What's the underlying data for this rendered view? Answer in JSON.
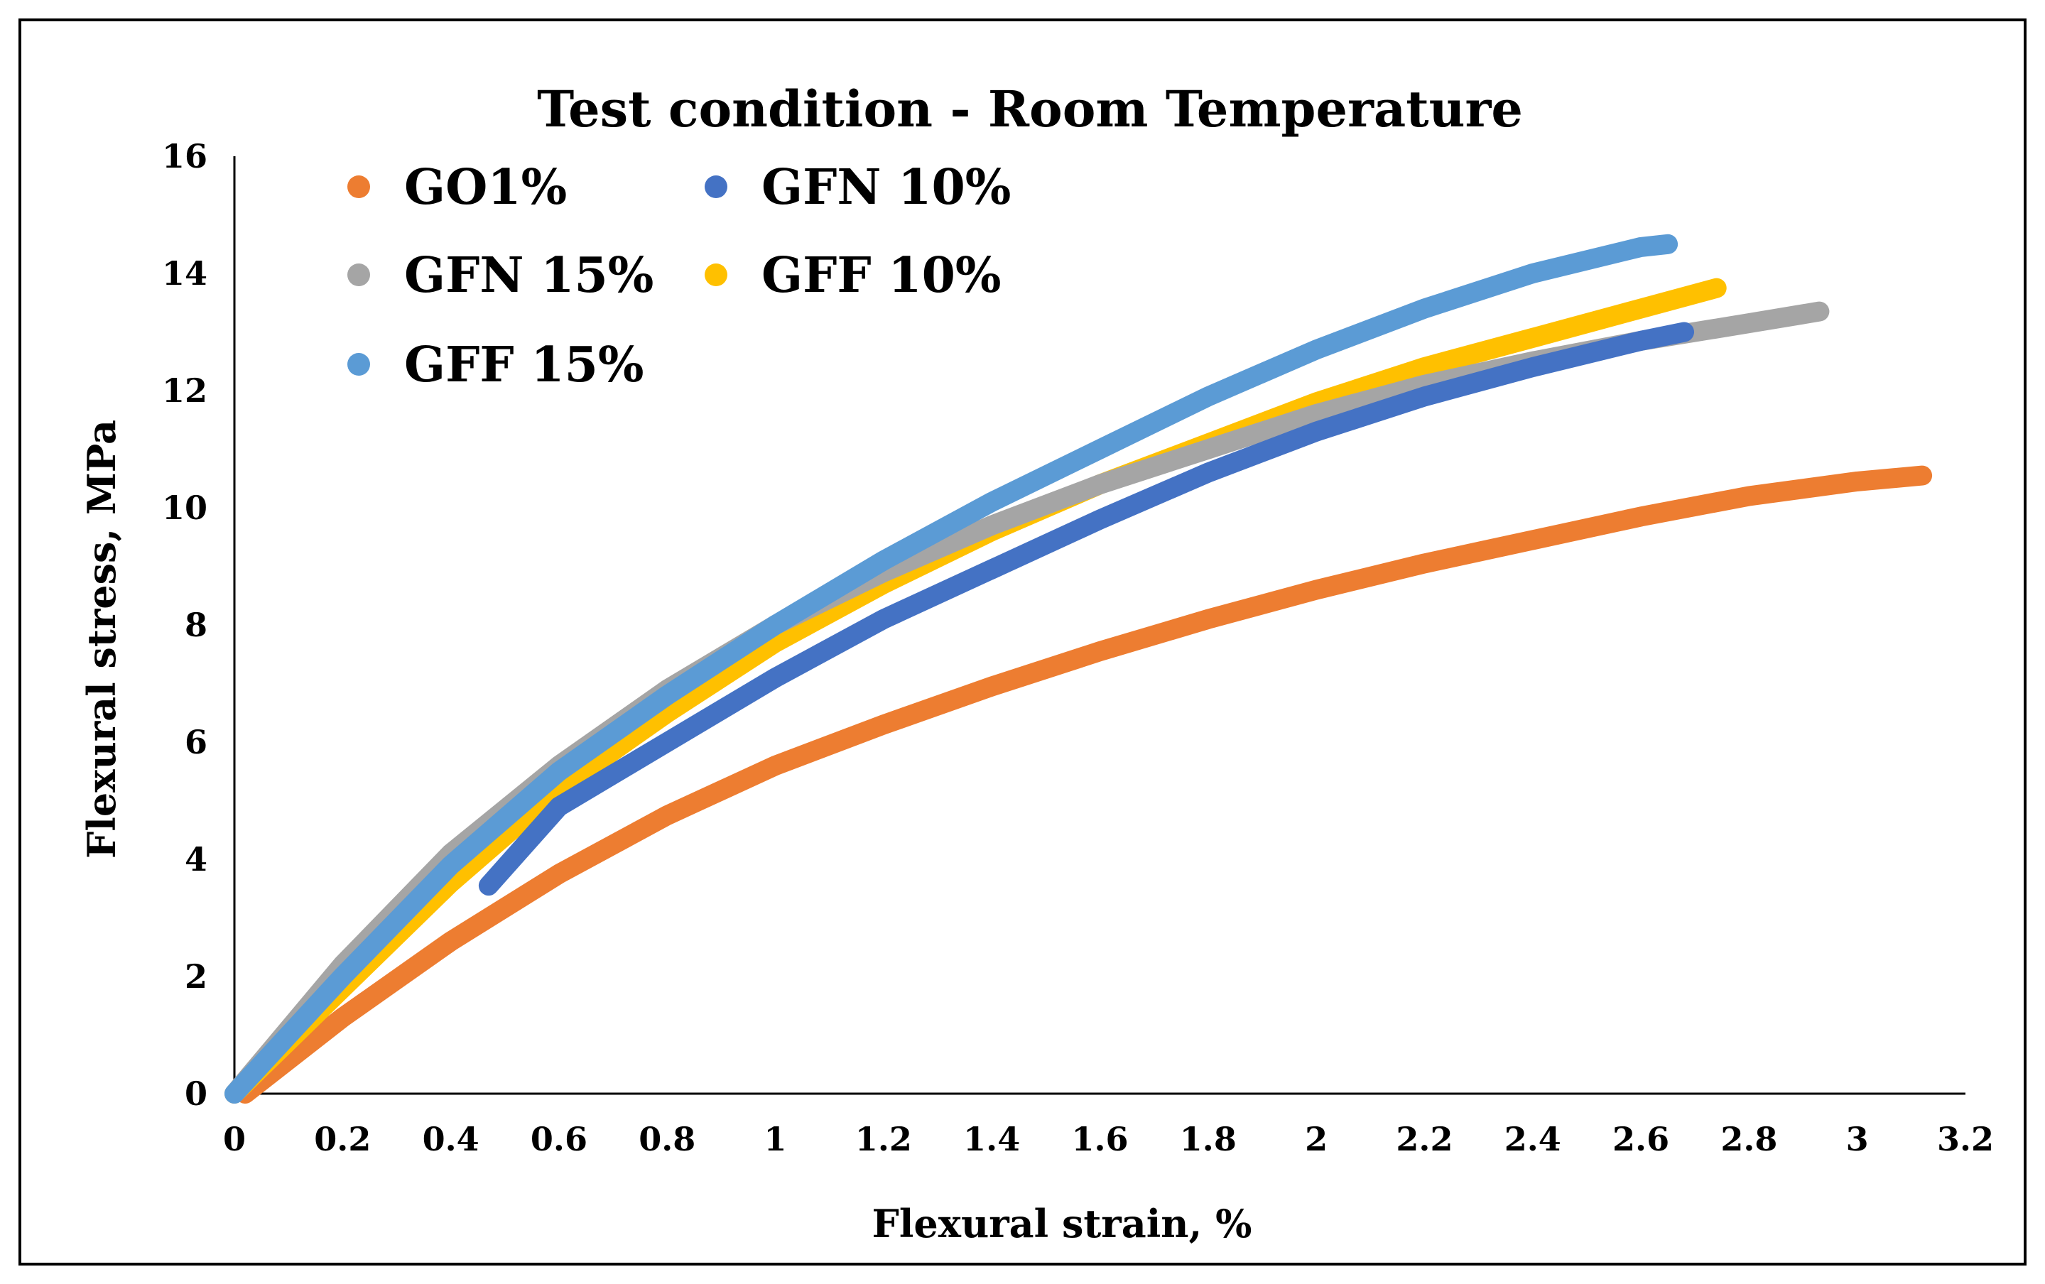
{
  "chart_data": {
    "type": "line",
    "title": "Test condition - Room Temperature",
    "xlabel": "Flexural strain, %",
    "ylabel": "Flexural stress, MPa",
    "xlim": [
      0,
      3.2
    ],
    "ylim": [
      0,
      16
    ],
    "xticks": [
      0,
      0.2,
      0.4,
      0.6,
      0.8,
      1,
      1.2,
      1.4,
      1.6,
      1.8,
      2,
      2.2,
      2.4,
      2.6,
      2.8,
      3,
      3.2
    ],
    "xtick_labels": [
      "0",
      "0.2",
      "0.4",
      "0.6",
      "0.8",
      "1",
      "1.2",
      "1.4",
      "1.6",
      "1.8",
      "2",
      "2.2",
      "2.4",
      "2.6",
      "2.8",
      "3",
      "3.2"
    ],
    "yticks": [
      0,
      2,
      4,
      6,
      8,
      10,
      12,
      14,
      16
    ],
    "ytick_labels": [
      "0",
      "2",
      "4",
      "6",
      "8",
      "10",
      "12",
      "14",
      "16"
    ],
    "grid": false,
    "legend_position": "top-left",
    "series": [
      {
        "name": "GO1%",
        "color": "#ED7D31",
        "x": [
          0.02,
          0.2,
          0.4,
          0.6,
          0.8,
          1.0,
          1.2,
          1.4,
          1.6,
          1.8,
          2.0,
          2.2,
          2.4,
          2.6,
          2.8,
          3.0,
          3.12
        ],
        "y": [
          0,
          1.3,
          2.6,
          3.75,
          4.75,
          5.6,
          6.3,
          6.95,
          7.55,
          8.1,
          8.6,
          9.05,
          9.45,
          9.85,
          10.2,
          10.45,
          10.55
        ]
      },
      {
        "name": "GFF 10%",
        "color": "#FFC000",
        "x": [
          0,
          0.1,
          0.2,
          0.4,
          0.6,
          0.8,
          1.0,
          1.2,
          1.4,
          1.6,
          1.8,
          2.0,
          2.2,
          2.4,
          2.6,
          2.74
        ],
        "y": [
          0,
          0.9,
          1.8,
          3.6,
          5.2,
          6.5,
          7.7,
          8.7,
          9.6,
          10.4,
          11.1,
          11.8,
          12.4,
          12.9,
          13.4,
          13.75
        ]
      },
      {
        "name": "GFN 15%",
        "color": "#A5A5A5",
        "x": [
          0,
          0.1,
          0.2,
          0.4,
          0.6,
          0.8,
          1.0,
          1.2,
          1.4,
          1.6,
          1.8,
          2.0,
          2.2,
          2.4,
          2.6,
          2.8,
          2.93
        ],
        "y": [
          0,
          1.1,
          2.2,
          4.1,
          5.6,
          6.9,
          8.0,
          8.9,
          9.7,
          10.4,
          11.0,
          11.6,
          12.1,
          12.5,
          12.85,
          13.15,
          13.35
        ]
      },
      {
        "name": "GFN 10%",
        "color": "#4472C4",
        "x": [
          0.47,
          0.6,
          0.8,
          1.0,
          1.2,
          1.4,
          1.6,
          1.8,
          2.0,
          2.2,
          2.4,
          2.6,
          2.68
        ],
        "y": [
          3.55,
          4.9,
          6.0,
          7.1,
          8.1,
          8.95,
          9.8,
          10.6,
          11.3,
          11.9,
          12.4,
          12.85,
          13.0
        ]
      },
      {
        "name": "GFF 15%",
        "color": "#5B9BD5",
        "x": [
          0,
          0.1,
          0.2,
          0.4,
          0.6,
          0.8,
          1.0,
          1.2,
          1.4,
          1.6,
          1.8,
          2.0,
          2.2,
          2.4,
          2.6,
          2.65
        ],
        "y": [
          0,
          1.0,
          2.0,
          3.9,
          5.5,
          6.8,
          8.0,
          9.1,
          10.1,
          11.0,
          11.9,
          12.7,
          13.4,
          14.0,
          14.45,
          14.5
        ]
      }
    ],
    "legend": [
      {
        "name": "GO1%",
        "color": "#ED7D31"
      },
      {
        "name": "GFN 10%",
        "color": "#4472C4"
      },
      {
        "name": "GFN 15%",
        "color": "#A5A5A5"
      },
      {
        "name": "GFF 10%",
        "color": "#FFC000"
      },
      {
        "name": "GFF 15%",
        "color": "#5B9BD5"
      }
    ]
  }
}
